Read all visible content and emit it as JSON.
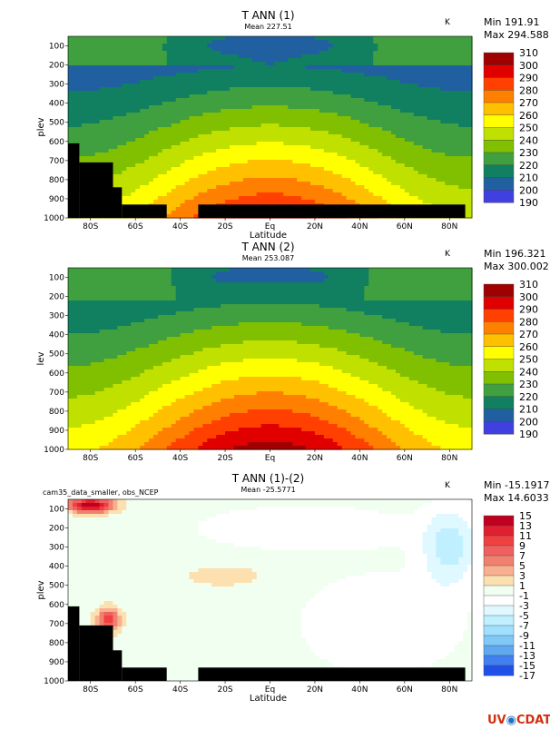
{
  "logo": {
    "left": "UV",
    "right": "CDAT"
  },
  "chart_data": [
    {
      "type": "heatmap",
      "title": "T ANN (1)",
      "subtitle": "Mean 227.51",
      "units": "K",
      "min_label": "Min 191.91",
      "max_label": "Max 294.588",
      "xlabel": "Latitude",
      "ylabel": "plev",
      "xlim": [
        -90,
        90
      ],
      "ylim": [
        1000,
        50
      ],
      "y_reversed": true,
      "xticks": [
        "80S",
        "60S",
        "40S",
        "20S",
        "Eq",
        "20N",
        "40N",
        "60N",
        "80N"
      ],
      "yticks": [
        "100",
        "200",
        "300",
        "400",
        "500",
        "600",
        "700",
        "800",
        "900",
        "1000"
      ],
      "legend_levels": [
        "310",
        "300",
        "290",
        "280",
        "270",
        "260",
        "250",
        "240",
        "230",
        "220",
        "210",
        "200",
        "190"
      ],
      "colors": [
        "#a00000",
        "#e00000",
        "#ff4000",
        "#ff8000",
        "#ffc000",
        "#ffff00",
        "#c0e000",
        "#80c000",
        "#40a040",
        "#108060",
        "#2060a0",
        "#4040e0",
        "#8020f0"
      ],
      "masked": true
    },
    {
      "type": "heatmap",
      "title": "T ANN (2)",
      "subtitle": "Mean 253.087",
      "units": "K",
      "min_label": "Min 196.321",
      "max_label": "Max 300.002",
      "xlabel": "",
      "ylabel": "lev",
      "xlim": [
        -90,
        90
      ],
      "ylim": [
        1000,
        50
      ],
      "y_reversed": true,
      "xticks": [
        "80S",
        "60S",
        "40S",
        "20S",
        "Eq",
        "20N",
        "40N",
        "60N",
        "80N"
      ],
      "yticks": [
        "100",
        "200",
        "300",
        "400",
        "500",
        "600",
        "700",
        "800",
        "900",
        "1000"
      ],
      "legend_levels": [
        "310",
        "300",
        "290",
        "280",
        "270",
        "260",
        "250",
        "240",
        "230",
        "220",
        "210",
        "200",
        "190"
      ],
      "colors": [
        "#a00000",
        "#e00000",
        "#ff4000",
        "#ff8000",
        "#ffc000",
        "#ffff00",
        "#c0e000",
        "#80c000",
        "#40a040",
        "#108060",
        "#2060a0",
        "#4040e0",
        "#8020f0"
      ],
      "masked": false
    },
    {
      "type": "heatmap",
      "title": "T ANN (1)-(2)",
      "subtitle": "Mean -25.5771",
      "caption": "cam35_data_smaller, obs_NCEP",
      "units": "K",
      "min_label": "Min -15.1917",
      "max_label": "Max 14.6033",
      "xlabel": "Latitude",
      "ylabel": "plev",
      "xlim": [
        -90,
        90
      ],
      "ylim": [
        1000,
        50
      ],
      "y_reversed": true,
      "xticks": [
        "80S",
        "60S",
        "40S",
        "20S",
        "Eq",
        "20N",
        "40N",
        "60N",
        "80N"
      ],
      "yticks": [
        "100",
        "200",
        "300",
        "400",
        "500",
        "600",
        "700",
        "800",
        "900",
        "1000"
      ],
      "legend_levels": [
        "15",
        "13",
        "11",
        "9",
        "7",
        "5",
        "3",
        "1",
        "-1",
        "-3",
        "-5",
        "-7",
        "-9",
        "-11",
        "-13",
        "-15",
        "-17"
      ],
      "colors": [
        "#c00020",
        "#e02030",
        "#f04040",
        "#f06060",
        "#f08070",
        "#f8b090",
        "#fde0b0",
        "#f0fff0",
        "#ffffff",
        "#e0f8ff",
        "#c0f0ff",
        "#a0e0ff",
        "#80c8f8",
        "#60a8f0",
        "#4080f0",
        "#2050e8",
        "#0000e0"
      ],
      "masked": true
    }
  ]
}
